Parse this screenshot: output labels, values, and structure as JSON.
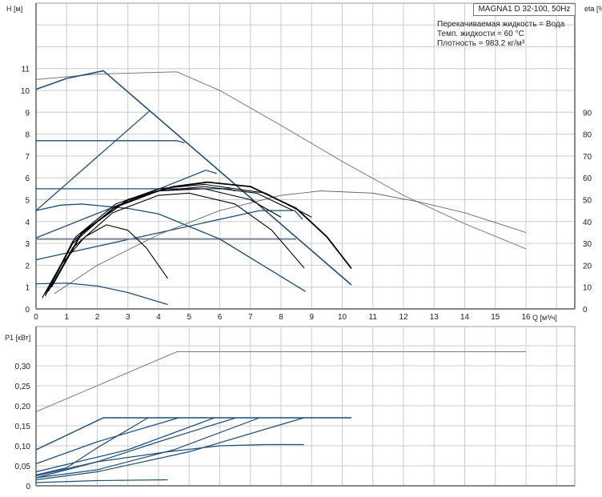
{
  "chart_data": [
    {
      "type": "line",
      "title": "MAGNA1 D 32-100, 50Hz",
      "annotations": [
        "Перекачиваемая жидкость = Вода",
        "Темп. жидкости = 60 °C",
        "Плотность = 983.2 кг/м³"
      ],
      "xlabel": "Q [м³/ч]",
      "ylabel": "H [м]",
      "y2label": "eta [%]",
      "xlim": [
        0,
        17.5
      ],
      "ylim": [
        0,
        14
      ],
      "y2lim": [
        0,
        140
      ],
      "x_ticks": [
        "0",
        "1",
        "2",
        "3",
        "4",
        "5",
        "6",
        "7",
        "8",
        "9",
        "10",
        "11",
        "12",
        "13",
        "14",
        "15",
        "16"
      ],
      "y_ticks": [
        "0",
        "1",
        "2",
        "3",
        "4",
        "5",
        "6",
        "7",
        "8",
        "9",
        "10",
        "11"
      ],
      "y2_ticks": [
        "0",
        "10",
        "20",
        "30",
        "40",
        "50",
        "60",
        "70",
        "80",
        "90"
      ],
      "grid": true,
      "head_series": [
        {
          "color": "#6d7f96",
          "width": 1,
          "points": [
            [
              0,
              10.5
            ],
            [
              2,
              10.75
            ],
            [
              4.6,
              10.85
            ],
            [
              6,
              10.0
            ],
            [
              8,
              8.4
            ],
            [
              10,
              6.75
            ],
            [
              12,
              5.2
            ],
            [
              14,
              3.9
            ],
            [
              16,
              2.75
            ]
          ]
        },
        {
          "color": "#1f4e79",
          "width": 1.6,
          "points": [
            [
              0,
              10.05
            ],
            [
              1,
              10.55
            ],
            [
              2.2,
              10.9
            ],
            [
              10.3,
              1.1
            ]
          ]
        },
        {
          "color": "#1f4e79",
          "width": 1.3,
          "points": [
            [
              0,
              4.5
            ],
            [
              3.7,
              9.05
            ]
          ]
        },
        {
          "color": "#1f4e79",
          "width": 1.3,
          "points": [
            [
              0,
              7.7
            ],
            [
              4.6,
              7.7
            ],
            [
              4.85,
              7.6
            ]
          ]
        },
        {
          "color": "#1f4e79",
          "width": 1.3,
          "points": [
            [
              0,
              5.5
            ],
            [
              6.3,
              5.5
            ],
            [
              6.5,
              5.4
            ]
          ]
        },
        {
          "color": "#1f4e79",
          "width": 1.3,
          "points": [
            [
              0,
              3.25
            ],
            [
              5.55,
              6.35
            ],
            [
              5.9,
              6.2
            ]
          ]
        },
        {
          "color": "#1f4e79",
          "width": 1.3,
          "points": [
            [
              0,
              2.25
            ],
            [
              7.3,
              4.5
            ],
            [
              8.45,
              4.5
            ],
            [
              8.7,
              4.1
            ]
          ]
        },
        {
          "color": "#7a8594",
          "width": 2,
          "points": [
            [
              0,
              3.2
            ],
            [
              8.5,
              3.2
            ]
          ]
        },
        {
          "color": "#1f4e79",
          "width": 1.3,
          "points": [
            [
              0,
              4.5
            ],
            [
              0.8,
              4.75
            ],
            [
              1.5,
              4.8
            ],
            [
              3,
              4.6
            ],
            [
              4,
              4.35
            ],
            [
              6,
              3.2
            ],
            [
              8.8,
              0.8
            ]
          ]
        },
        {
          "color": "#1f4e79",
          "width": 1.3,
          "points": [
            [
              0,
              1.15
            ],
            [
              1,
              1.18
            ],
            [
              2,
              1.05
            ],
            [
              3,
              0.75
            ],
            [
              4.3,
              0.2
            ]
          ]
        }
      ],
      "eta_series": [
        {
          "color": "#555",
          "width": 0.8,
          "points": [
            [
              0.6,
              7
            ],
            [
              2,
              20
            ],
            [
              4,
              34
            ],
            [
              6,
              45
            ],
            [
              8,
              52
            ],
            [
              9.3,
              54
            ],
            [
              11,
              53
            ],
            [
              12.5,
              49
            ],
            [
              14,
              44
            ],
            [
              16,
              35
            ]
          ]
        },
        {
          "color": "#000",
          "width": 1.1,
          "points": [
            [
              0.2,
              5
            ],
            [
              0.8,
              20
            ],
            [
              1.6,
              33
            ],
            [
              2.3,
              38.5
            ],
            [
              3,
              36
            ],
            [
              3.6,
              28
            ],
            [
              4.3,
              14
            ]
          ]
        },
        {
          "color": "#000",
          "width": 1.1,
          "points": [
            [
              0.4,
              8
            ],
            [
              1.2,
              28
            ],
            [
              2.5,
              44
            ],
            [
              4,
              52
            ],
            [
              5,
              53
            ],
            [
              6.5,
              48
            ],
            [
              7.7,
              36
            ],
            [
              8.76,
              18.7
            ]
          ]
        },
        {
          "color": "#000",
          "width": 1.1,
          "points": [
            [
              0.3,
              6
            ],
            [
              1.2,
              30
            ],
            [
              2.5,
              46
            ],
            [
              4,
              54
            ],
            [
              5.5,
              55
            ],
            [
              7,
              50
            ],
            [
              8,
              42
            ]
          ]
        },
        {
          "color": "#000",
          "width": 1.1,
          "points": [
            [
              0.3,
              6
            ],
            [
              1.2,
              31
            ],
            [
              2.6,
              47
            ],
            [
              4,
              54
            ],
            [
              5.5,
              56
            ],
            [
              7.2,
              53
            ],
            [
              8.4,
              45
            ]
          ]
        },
        {
          "color": "#000",
          "width": 1.1,
          "points": [
            [
              0.3,
              7
            ],
            [
              1.3,
              33
            ],
            [
              2.6,
              48
            ],
            [
              4,
              55
            ],
            [
              5.5,
              57
            ],
            [
              7.5,
              53
            ],
            [
              9,
              42
            ]
          ]
        },
        {
          "color": "#000",
          "width": 1.8,
          "points": [
            [
              0.5,
              10
            ],
            [
              1.5,
              35
            ],
            [
              3,
              50
            ],
            [
              4.5,
              56
            ],
            [
              5.6,
              58
            ],
            [
              7,
              56
            ],
            [
              8.5,
              46
            ],
            [
              9.5,
              33
            ],
            [
              10.3,
              18.5
            ]
          ]
        }
      ]
    },
    {
      "type": "line",
      "ylabel": "P1 [кВт]",
      "xlim": [
        0,
        17.5
      ],
      "ylim": [
        0,
        0.39
      ],
      "y_ticks": [
        "0",
        "0,05",
        "0,10",
        "0,15",
        "0,20",
        "0,25",
        "0,30"
      ],
      "grid": true,
      "series": [
        {
          "color": "#6d7f96",
          "width": 1,
          "points": [
            [
              0,
              0.185
            ],
            [
              4.6,
              0.335
            ],
            [
              16,
              0.335
            ]
          ]
        },
        {
          "color": "#1f4e79",
          "width": 1.5,
          "points": [
            [
              0,
              0.09
            ],
            [
              2.2,
              0.17
            ],
            [
              10.3,
              0.17
            ]
          ]
        },
        {
          "color": "#1f4e79",
          "width": 1.2,
          "points": [
            [
              0,
              0.055
            ],
            [
              2,
              0.11
            ],
            [
              4.66,
              0.17
            ]
          ]
        },
        {
          "color": "#1f4e79",
          "width": 1.2,
          "points": [
            [
              0,
              0.027
            ],
            [
              1,
              0.045
            ],
            [
              2,
              0.095
            ],
            [
              3.66,
              0.17
            ]
          ]
        },
        {
          "color": "#1f4e79",
          "width": 1.2,
          "points": [
            [
              0,
              0.035
            ],
            [
              3,
              0.09
            ],
            [
              5.83,
              0.17
            ]
          ]
        },
        {
          "color": "#1f4e79",
          "width": 1.2,
          "points": [
            [
              0,
              0.025
            ],
            [
              2,
              0.06
            ],
            [
              4,
              0.11
            ],
            [
              6.53,
              0.17
            ]
          ]
        },
        {
          "color": "#1f4e79",
          "width": 1.2,
          "points": [
            [
              0,
              0.02
            ],
            [
              2,
              0.04
            ],
            [
              4.5,
              0.09
            ],
            [
              7.3,
              0.17
            ]
          ]
        },
        {
          "color": "#1f4e79",
          "width": 1.2,
          "points": [
            [
              0,
              0.015
            ],
            [
              2,
              0.035
            ],
            [
              5,
              0.085
            ],
            [
              8.75,
              0.17
            ]
          ]
        },
        {
          "color": "#1f4e79",
          "width": 1.2,
          "points": [
            [
              0,
              0.02
            ],
            [
              2,
              0.06
            ],
            [
              4.3,
              0.085
            ],
            [
              6,
              0.1
            ],
            [
              7.5,
              0.103
            ],
            [
              8.75,
              0.103
            ]
          ]
        },
        {
          "color": "#1f4e79",
          "width": 1.2,
          "points": [
            [
              0,
              0.008
            ],
            [
              2,
              0.013
            ],
            [
              4.3,
              0.015
            ]
          ]
        }
      ]
    }
  ]
}
